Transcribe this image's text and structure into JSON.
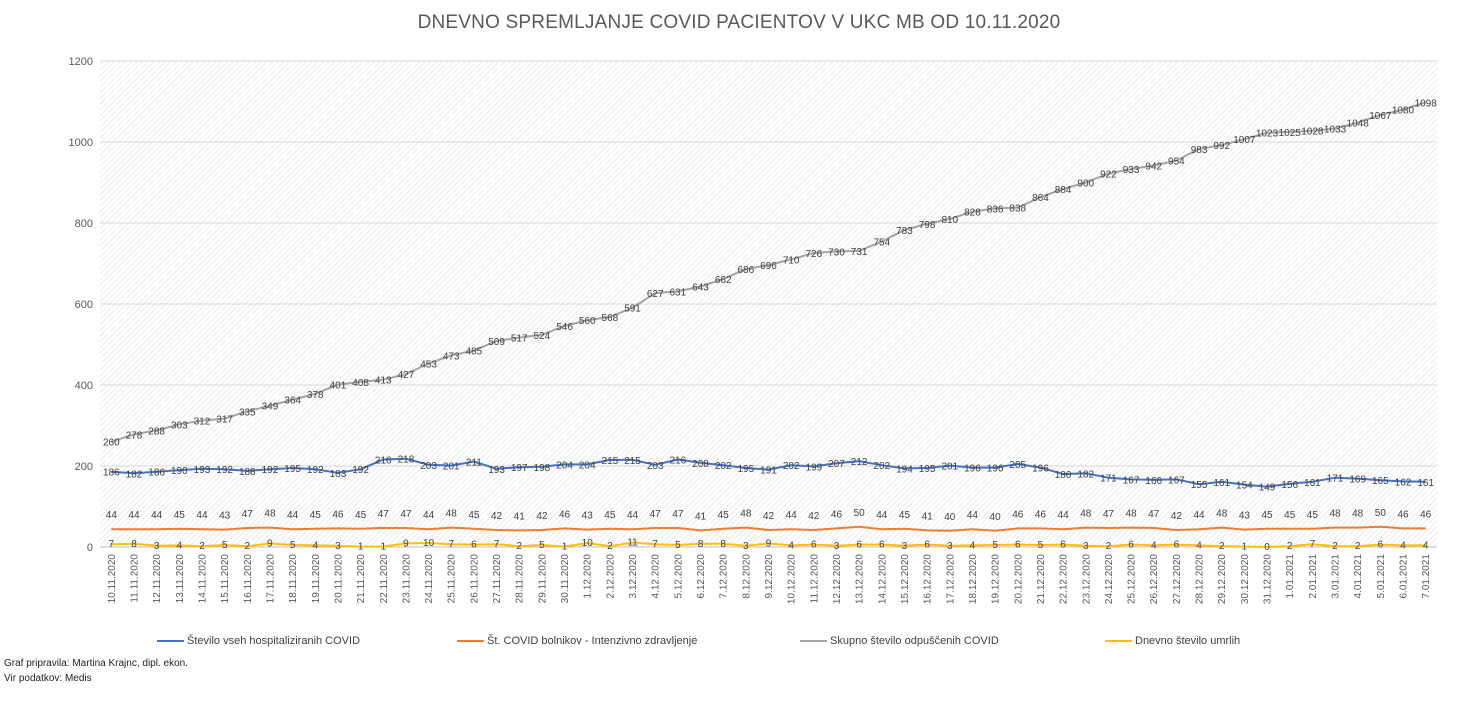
{
  "chart_data": {
    "type": "line",
    "title": "DNEVNO SPREMLJANJE COVID PACIENTOV V UKC MB OD 10.11.2020",
    "xlabel": "",
    "ylabel": "",
    "ylim": [
      0,
      1200
    ],
    "yticks": [
      0,
      200,
      400,
      600,
      800,
      1000,
      1200
    ],
    "legend_position": "bottom",
    "categories": [
      "10.11.2020",
      "11.11.2020",
      "12.11.2020",
      "13.11.2020",
      "14.11.2020",
      "15.11.2020",
      "16.11.2020",
      "17.11.2020",
      "18.11.2020",
      "19.11.2020",
      "20.11.2020",
      "21.11.2020",
      "22.11.2020",
      "23.11.2020",
      "24.11.2020",
      "25.11.2020",
      "26.11.2020",
      "27.11.2020",
      "28.11.2020",
      "29.11.2020",
      "30.11.2020",
      "1.12.2020",
      "2.12.2020",
      "3.12.2020",
      "4.12.2020",
      "5.12.2020",
      "6.12.2020",
      "7.12.2020",
      "8.12.2020",
      "9.12.2020",
      "10.12.2020",
      "11.12.2020",
      "12.12.2020",
      "13.12.2020",
      "14.12.2020",
      "15.12.2020",
      "16.12.2020",
      "17.12.2020",
      "18.12.2020",
      "19.12.2020",
      "20.12.2020",
      "21.12.2020",
      "22.12.2020",
      "23.12.2020",
      "24.12.2020",
      "25.12.2020",
      "26.12.2020",
      "27.12.2020",
      "28.12.2020",
      "29.12.2020",
      "30.12.2020",
      "31.12.2020",
      "1.01.2021",
      "2.01.2021",
      "3.01.2021",
      "4.01.2021",
      "5.01.2021",
      "6.01.2021",
      "7.01.2021"
    ],
    "series": [
      {
        "name": "Število vseh hospitaliziranih COVID",
        "color": "#4472c4",
        "values": [
          186,
          182,
          186,
          190,
          193,
          192,
          188,
          192,
          195,
          192,
          183,
          192,
          216,
          218,
          203,
          201,
          211,
          193,
          197,
          198,
          204,
          204,
          215,
          215,
          203,
          216,
          208,
          202,
          195,
          191,
          202,
          199,
          207,
          212,
          202,
          194,
          195,
          201,
          196,
          196,
          205,
          196,
          180,
          182,
          171,
          167,
          166,
          167,
          155,
          161,
          154,
          149,
          156,
          161,
          171,
          169,
          165,
          162,
          161
        ]
      },
      {
        "name": "Št. COVID bolnikov - Intenzivno zdravljenje",
        "color": "#ed7d31",
        "values": [
          44,
          44,
          44,
          45,
          44,
          43,
          47,
          48,
          44,
          45,
          46,
          45,
          47,
          47,
          44,
          48,
          45,
          42,
          41,
          42,
          46,
          43,
          45,
          44,
          47,
          47,
          41,
          45,
          48,
          42,
          44,
          42,
          46,
          50,
          44,
          45,
          41,
          40,
          44,
          40,
          46,
          46,
          44,
          48,
          47,
          48,
          47,
          42,
          44,
          48,
          43,
          45,
          45,
          45,
          48,
          48,
          50,
          46,
          46
        ]
      },
      {
        "name": "Skupno število odpuščenih COVID",
        "color": "#a5a5a5",
        "values": [
          260,
          278,
          288,
          303,
          312,
          317,
          335,
          349,
          364,
          378,
          401,
          408,
          413,
          427,
          453,
          473,
          485,
          509,
          517,
          524,
          546,
          560,
          568,
          591,
          627,
          631,
          643,
          662,
          686,
          696,
          710,
          726,
          730,
          731,
          754,
          783,
          798,
          810,
          828,
          836,
          838,
          864,
          884,
          900,
          922,
          933,
          942,
          954,
          983,
          992,
          1007,
          1023,
          1025,
          1028,
          1033,
          1048,
          1067,
          1080,
          1098
        ]
      },
      {
        "name": "Dnevno število umrlih",
        "color": "#ffc000",
        "values": [
          7,
          8,
          3,
          4,
          2,
          5,
          2,
          9,
          5,
          4,
          3,
          1,
          1,
          9,
          10,
          7,
          6,
          7,
          2,
          5,
          1,
          10,
          2,
          11,
          7,
          5,
          8,
          8,
          3,
          9,
          4,
          6,
          3,
          6,
          6,
          3,
          6,
          3,
          4,
          5,
          6,
          5,
          6,
          3,
          2,
          6,
          4,
          6,
          4,
          2,
          1,
          0,
          2,
          7,
          2,
          2,
          6,
          4,
          4
        ]
      }
    ]
  },
  "credits": {
    "author": "Graf pripravila: Martina Krajnc, dipl. ekon.",
    "source": "Vir podatkov: Medis"
  }
}
